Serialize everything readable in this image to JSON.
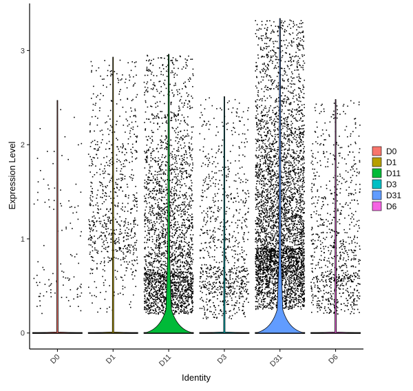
{
  "chart_data": {
    "type": "violin",
    "title": "",
    "xlabel": "Identity",
    "ylabel": "Expression Level",
    "ylim": [
      -0.17,
      3.5
    ],
    "yticks": [
      0,
      1,
      2,
      3
    ],
    "categories": [
      "D0",
      "D1",
      "D11",
      "D3",
      "D31",
      "D6"
    ],
    "series": [
      {
        "name": "D0",
        "color": "#F8766D",
        "max": 2.47,
        "nonzero_points": 110,
        "nonzero_range": [
          0.2,
          2.45
        ],
        "nonzero_center": 0.6,
        "violin_zero_halfwidth": 0.45,
        "violin_bulge": 0.0
      },
      {
        "name": "D1",
        "color": "#B79F00",
        "max": 2.93,
        "nonzero_points": 750,
        "nonzero_range": [
          0.2,
          2.9
        ],
        "nonzero_center": 1.2,
        "violin_zero_halfwidth": 0.45,
        "violin_bulge": 0.0
      },
      {
        "name": "D11",
        "color": "#00BA38",
        "max": 2.96,
        "nonzero_points": 2600,
        "nonzero_range": [
          0.2,
          2.95
        ],
        "nonzero_center": 0.65,
        "violin_zero_halfwidth": 0.45,
        "violin_bulge": 0.48
      },
      {
        "name": "D3",
        "color": "#00BFC4",
        "max": 2.51,
        "nonzero_points": 850,
        "nonzero_range": [
          0.15,
          2.5
        ],
        "nonzero_center": 0.7,
        "violin_zero_halfwidth": 0.45,
        "violin_bulge": 0.0
      },
      {
        "name": "D31",
        "color": "#619CFF",
        "max": 3.34,
        "nonzero_points": 4300,
        "nonzero_range": [
          0.25,
          3.33
        ],
        "nonzero_center": 0.9,
        "violin_zero_halfwidth": 0.45,
        "violin_bulge": 0.48
      },
      {
        "name": "D6",
        "color": "#F564E3",
        "max": 2.48,
        "nonzero_points": 850,
        "nonzero_range": [
          0.2,
          2.47
        ],
        "nonzero_center": 0.65,
        "violin_zero_halfwidth": 0.45,
        "violin_bulge": 0.0
      }
    ],
    "legend": {
      "position": "right"
    },
    "grid": false
  }
}
